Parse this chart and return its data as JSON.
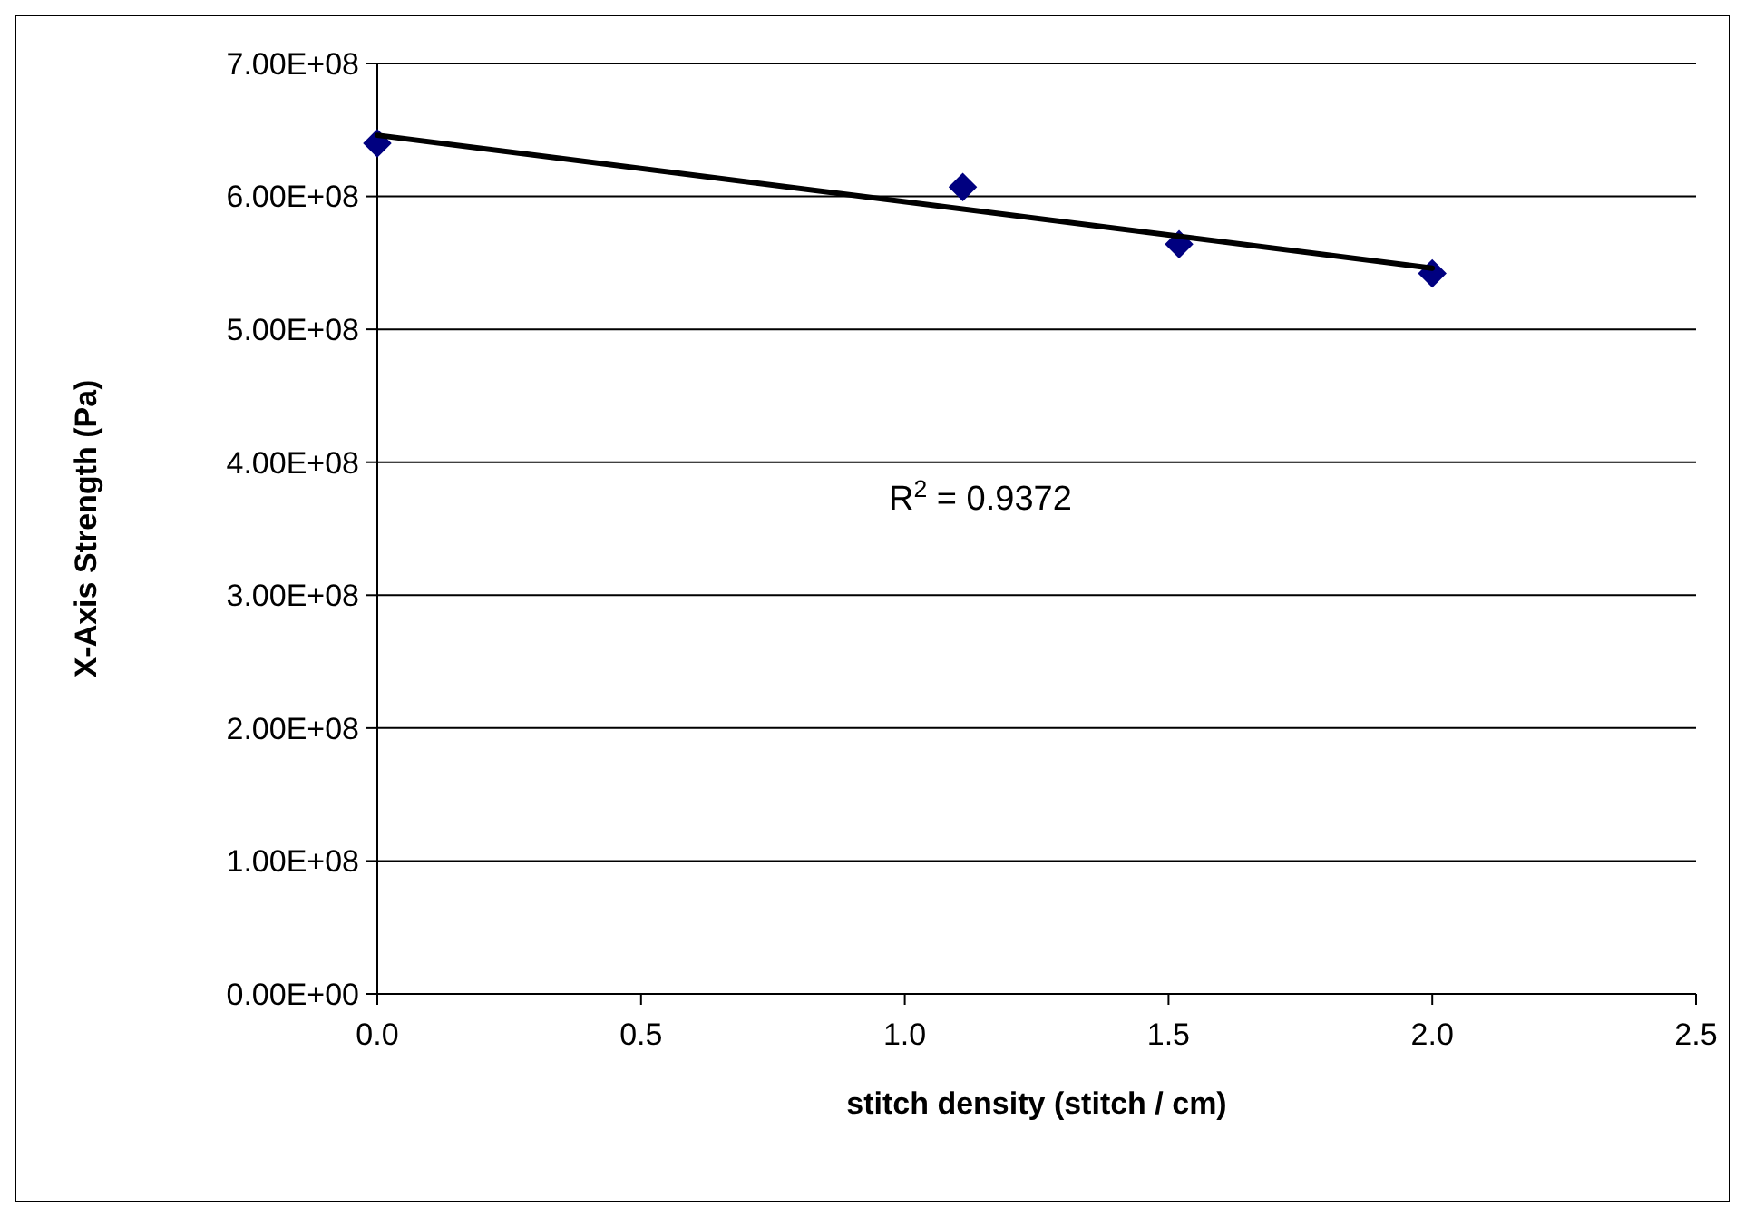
{
  "chart_data": {
    "type": "scatter",
    "xlabel": "stitch density (stitch / cm)",
    "ylabel": "X-Axis Strength (Pa)",
    "x": [
      0,
      1.11,
      1.52,
      2.0
    ],
    "series": [
      {
        "color": "#000080",
        "marker": "diamond",
        "values": [
          640000000.0,
          607000000.0,
          564000000.0,
          542000000.0
        ]
      },
      {
        "type": "line",
        "color": "#000000",
        "marker": "none",
        "line_style": "solid",
        "x": [
          0,
          2.0
        ],
        "values": [
          646000000.0,
          546000000.0
        ]
      }
    ],
    "xlim": [
      0,
      2.5
    ],
    "xticks": [
      {
        "value": 0,
        "label": "0.0"
      },
      {
        "value": 0.5,
        "label": "0.5"
      },
      {
        "value": 1,
        "label": "1.0"
      },
      {
        "value": 1.5,
        "label": "1.5"
      },
      {
        "value": 2,
        "label": "2.0"
      },
      {
        "value": 2.5,
        "label": "2.5"
      }
    ],
    "ylim": [
      0,
      700000000.0
    ],
    "yticks": [
      {
        "value": 0,
        "label": "0.00E+00"
      },
      {
        "value": 100000000.0,
        "label": "1.00E+08"
      },
      {
        "value": 200000000.0,
        "label": "2.00E+08"
      },
      {
        "value": 300000000.0,
        "label": "3.00E+08"
      },
      {
        "value": 400000000.0,
        "label": "4.00E+08"
      },
      {
        "value": 500000000.0,
        "label": "5.00E+08"
      },
      {
        "value": 600000000.0,
        "label": "6.00E+08"
      },
      {
        "value": 700000000.0,
        "label": "7.00E+08"
      }
    ],
    "grid": "y",
    "annotations": [
      "R$^{2}$ = 0.9372"
    ]
  }
}
